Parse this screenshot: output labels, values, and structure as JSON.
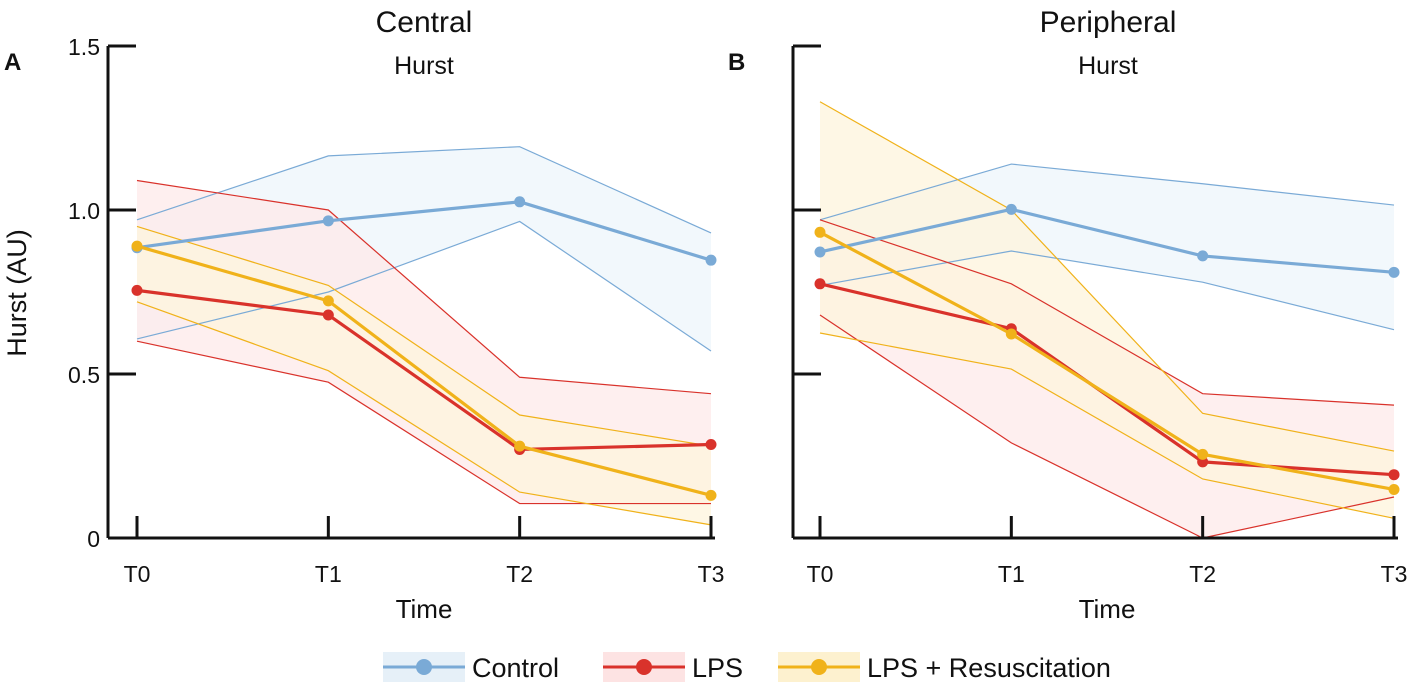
{
  "y_axis_label": "Hurst (AU)",
  "legend": [
    {
      "label": "Control",
      "color": "#7aaad6",
      "fill": "#e6f0f8"
    },
    {
      "label": "LPS",
      "color": "#d9322b",
      "fill": "#fde3e3"
    },
    {
      "label": "LPS + Resuscitation",
      "color": "#f0b21a",
      "fill": "#fdf1cf"
    }
  ],
  "chart_data": [
    {
      "type": "line",
      "panel_letter": "A",
      "title": "Central",
      "subtitle": "Hurst",
      "xlabel": "Time",
      "ylabel": "Hurst (AU)",
      "ylim": [
        0,
        1.5
      ],
      "yticks": [
        0,
        0.5,
        1.0,
        1.5
      ],
      "ytick_labels": [
        "0",
        "0.5",
        "1.0",
        "1.5"
      ],
      "categories": [
        "T0",
        "T1",
        "T2",
        "T3"
      ],
      "series": [
        {
          "name": "Control",
          "color": "#7aaad6",
          "fill": "#eef5fb",
          "values": [
            0.885,
            0.967,
            1.025,
            0.847
          ],
          "upper": [
            0.97,
            1.165,
            1.193,
            0.93
          ],
          "lower": [
            0.607,
            0.75,
            0.965,
            0.57
          ]
        },
        {
          "name": "LPS",
          "color": "#d9322b",
          "fill": "#fdeaea",
          "values": [
            0.755,
            0.68,
            0.27,
            0.285
          ],
          "upper": [
            1.09,
            1.0,
            0.49,
            0.44
          ],
          "lower": [
            0.6,
            0.475,
            0.105,
            0.105
          ]
        },
        {
          "name": "LPS + Resuscitation",
          "color": "#f0b21a",
          "fill": "#fdf4dc",
          "values": [
            0.89,
            0.723,
            0.28,
            0.13
          ],
          "upper": [
            0.95,
            0.77,
            0.375,
            0.28
          ],
          "lower": [
            0.72,
            0.51,
            0.14,
            0.04
          ]
        }
      ]
    },
    {
      "type": "line",
      "panel_letter": "B",
      "title": "Peripheral",
      "subtitle": "Hurst",
      "xlabel": "Time",
      "ylabel": "",
      "ylim": [
        0,
        1.5
      ],
      "yticks": [
        0,
        0.5,
        1.0,
        1.5
      ],
      "ytick_labels": [
        "",
        "",
        "",
        ""
      ],
      "categories": [
        "T0",
        "T1",
        "T2",
        "T3"
      ],
      "series": [
        {
          "name": "Control",
          "color": "#7aaad6",
          "fill": "#eef5fb",
          "values": [
            0.872,
            1.002,
            0.86,
            0.81
          ],
          "upper": [
            0.97,
            1.14,
            1.08,
            1.015
          ],
          "lower": [
            0.77,
            0.875,
            0.78,
            0.635
          ]
        },
        {
          "name": "LPS",
          "color": "#d9322b",
          "fill": "#fdeaea",
          "values": [
            0.775,
            0.638,
            0.232,
            0.193
          ],
          "upper": [
            0.97,
            0.775,
            0.44,
            0.405
          ],
          "lower": [
            0.68,
            0.29,
            0.0,
            0.125
          ]
        },
        {
          "name": "LPS + Resuscitation",
          "color": "#f0b21a",
          "fill": "#fdf4dc",
          "values": [
            0.932,
            0.622,
            0.255,
            0.148
          ],
          "upper": [
            1.33,
            1.0,
            0.38,
            0.265
          ],
          "lower": [
            0.625,
            0.515,
            0.18,
            0.06
          ]
        }
      ]
    }
  ]
}
